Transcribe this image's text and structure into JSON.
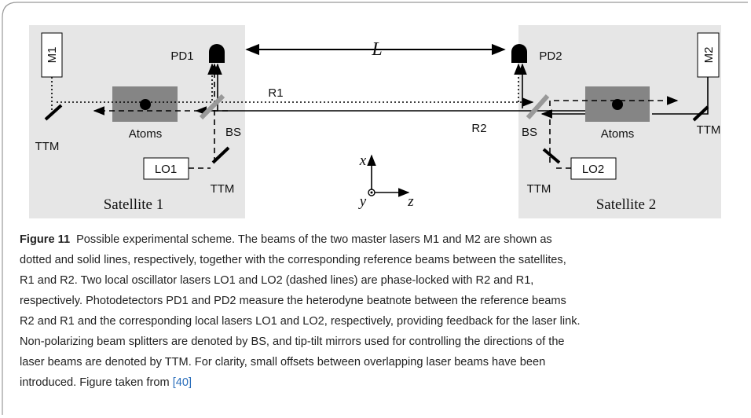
{
  "figure": {
    "labels": {
      "m1": "M1",
      "m2": "M2",
      "ttm1a": "TTM",
      "ttm1b": "TTM",
      "ttm2a": "TTM",
      "ttm2b": "TTM",
      "atoms1": "Atoms",
      "atoms2": "Atoms",
      "bs1": "BS",
      "bs2": "BS",
      "pd1": "PD1",
      "pd2": "PD2",
      "lo1": "LO1",
      "lo2": "LO2",
      "r1": "R1",
      "r2": "R2",
      "l": "L",
      "sat1": "Satellite 1",
      "sat2": "Satellite 2",
      "ax_x": "x",
      "ax_y": "y",
      "ax_z": "z"
    }
  },
  "caption": {
    "label": "Figure 11",
    "lines": [
      "Possible experimental scheme. The beams of the two master lasers M1 and M2 are shown as",
      "dotted and solid lines, respectively, together with the corresponding reference beams between the satellites,",
      "R1 and R2. Two local oscillator lasers LO1 and LO2 (dashed lines) are phase-locked with R2 and R1,",
      "respectively. Photodetectors PD1 and PD2 measure the heterodyne beatnote between the reference beams",
      "R2 and R1 and the corresponding local lasers LO1 and LO2, respectively, providing feedback for the laser link.",
      "Non-polarizing beam splitters are denoted by BS, and tip-tilt mirrors used for controlling the directions of the",
      "laser beams are denoted by TTM. For clarity, small offsets between overlapping laser beams have been",
      "introduced. Figure taken from "
    ],
    "ref": "[40]"
  }
}
